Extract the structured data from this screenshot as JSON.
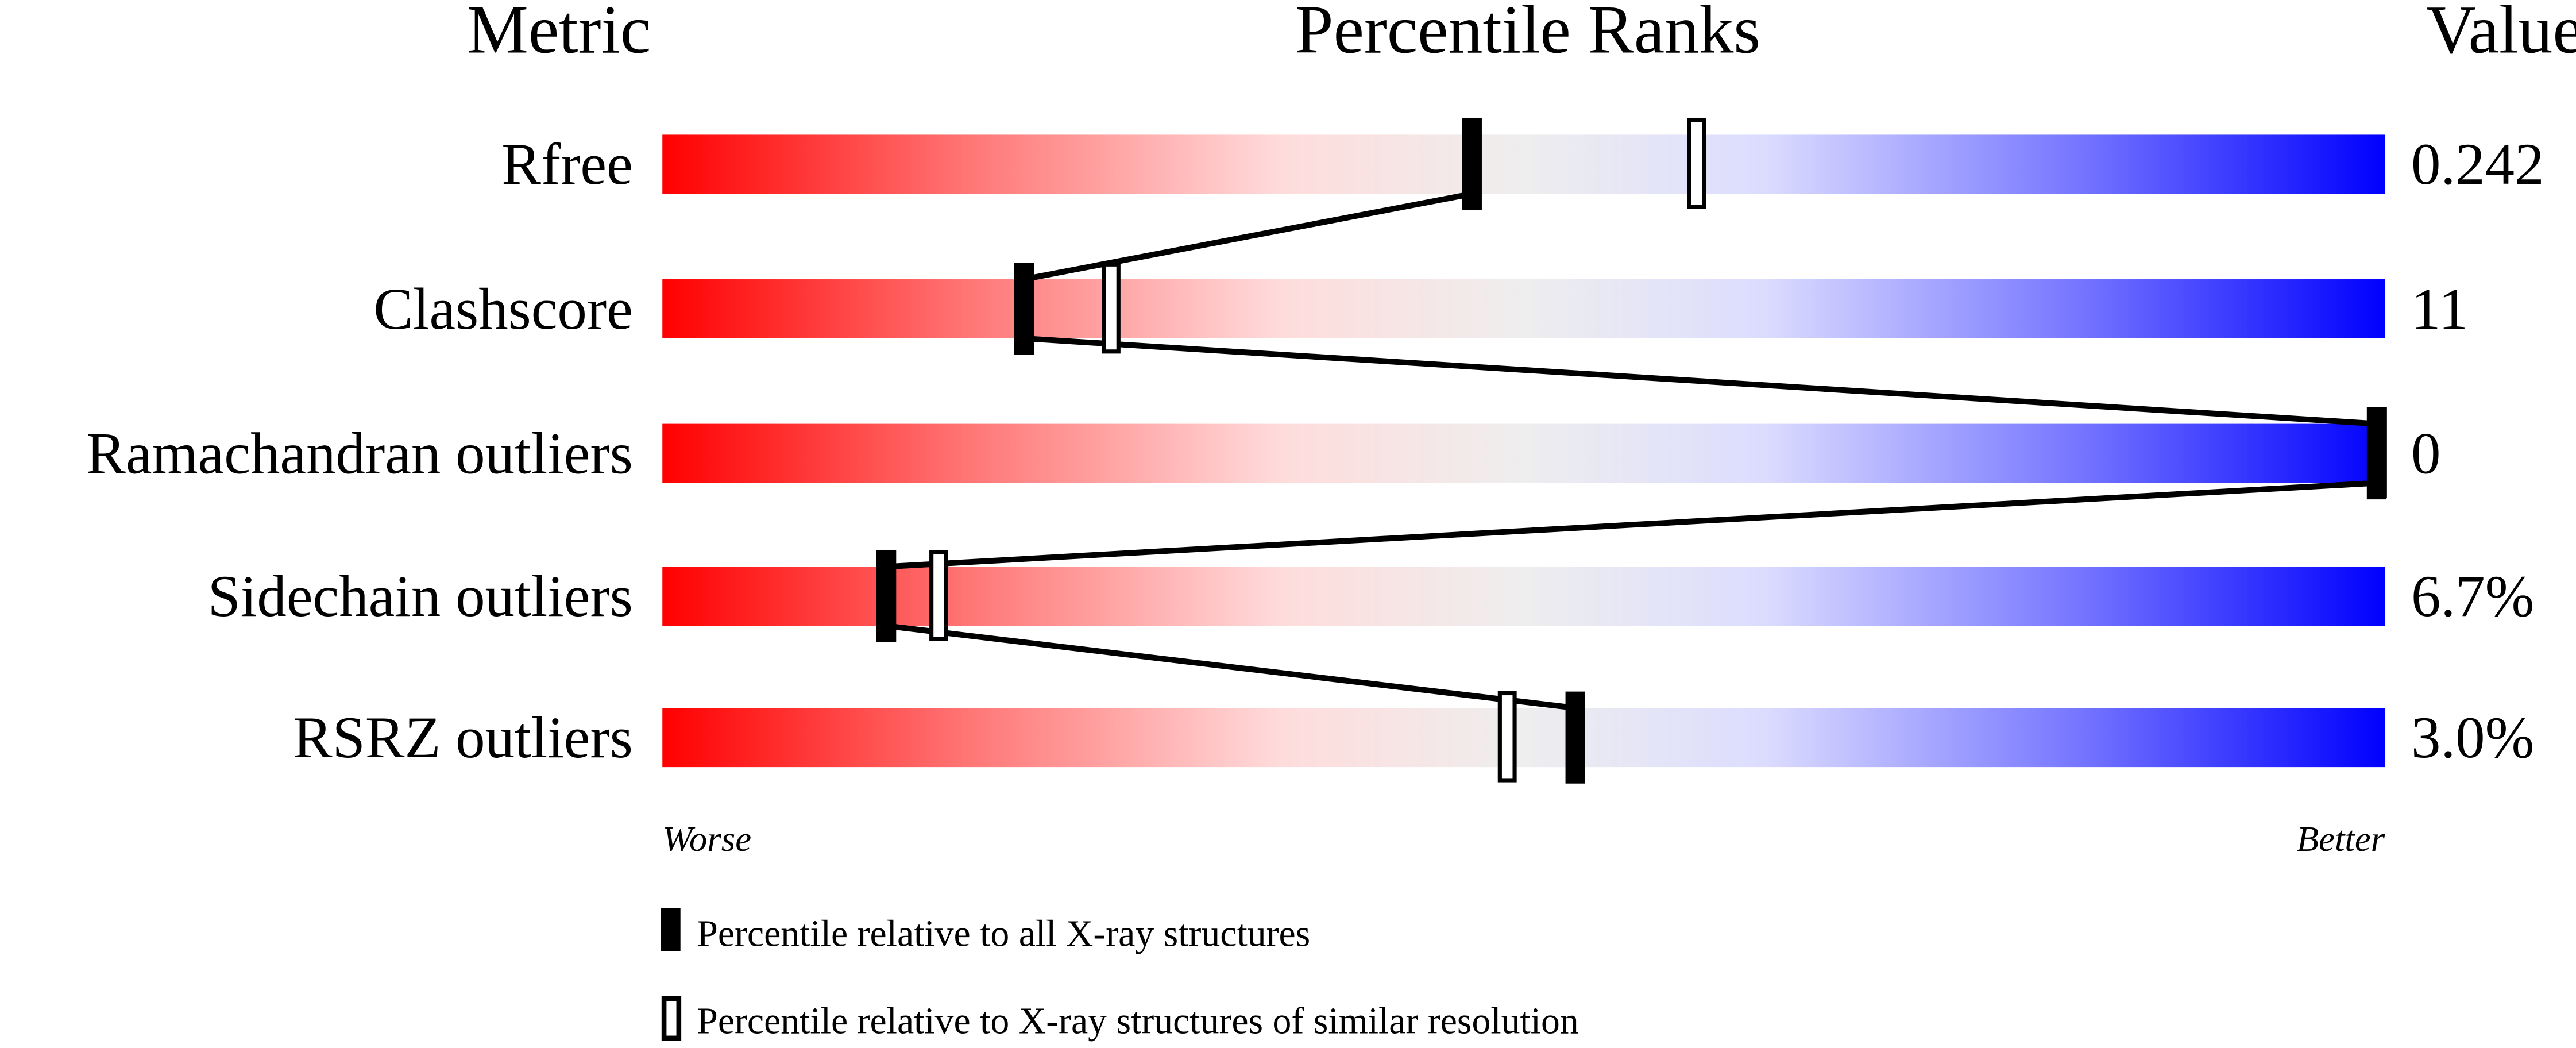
{
  "chart_data": {
    "type": "percentile-slider",
    "headers": {
      "metric": "Metric",
      "ranks": "Percentile Ranks",
      "value": "Value"
    },
    "xlim": [
      0,
      100
    ],
    "axis_labels": {
      "left": "Worse",
      "right": "Better"
    },
    "metrics": [
      {
        "name": "Rfree",
        "value": "0.242",
        "percentile_all": 47,
        "percentile_similar": 60
      },
      {
        "name": "Clashscore",
        "value": "11",
        "percentile_all": 21,
        "percentile_similar": 26
      },
      {
        "name": "Ramachandran outliers",
        "value": "0",
        "percentile_all": 100,
        "percentile_similar": 100
      },
      {
        "name": "Sidechain outliers",
        "value": "6.7%",
        "percentile_all": 13,
        "percentile_similar": 16
      },
      {
        "name": "RSRZ outliers",
        "value": "3.0%",
        "percentile_all": 53,
        "percentile_similar": 49
      }
    ],
    "legend": [
      {
        "marker": "filled",
        "label": "Percentile relative to all X-ray structures"
      },
      {
        "marker": "open",
        "label": "Percentile relative to X-ray structures of similar resolution"
      }
    ],
    "colors": {
      "worse": "#ff0000",
      "middle": "#eeeeee",
      "better": "#0000ff"
    }
  }
}
